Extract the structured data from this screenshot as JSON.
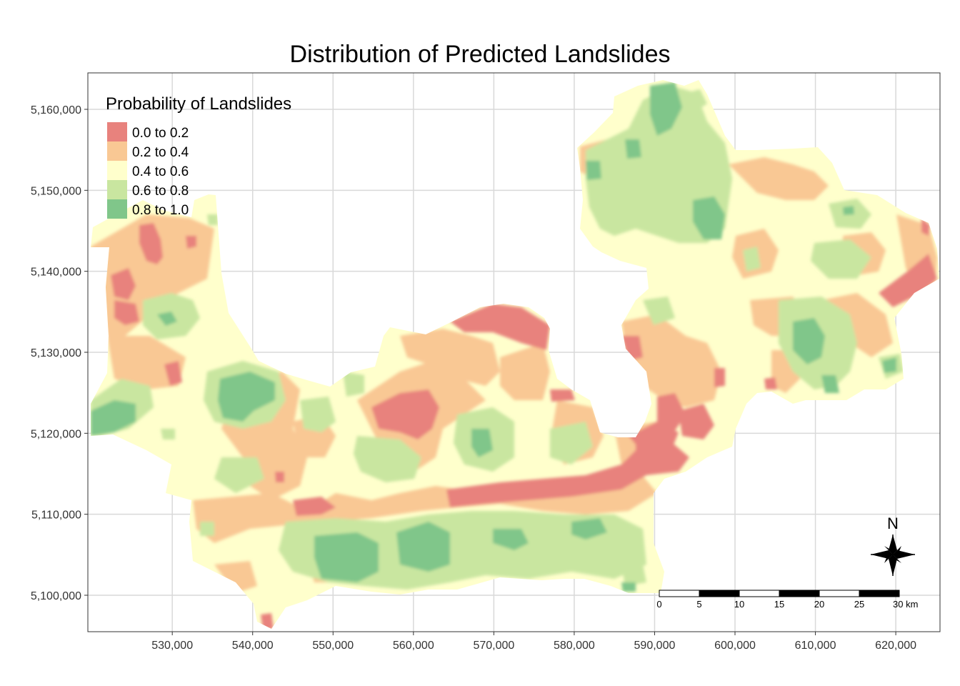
{
  "title": "Distribution of Predicted Landslides",
  "legend": {
    "title": "Probability of Landslides",
    "placement": "top-left",
    "items": [
      {
        "label": "0.0 to 0.2",
        "color": "#e8827d"
      },
      {
        "label": "0.2 to 0.4",
        "color": "#f9c894"
      },
      {
        "label": "0.4 to 0.6",
        "color": "#ffffcc"
      },
      {
        "label": "0.6 to 0.8",
        "color": "#c9e6a0"
      },
      {
        "label": "0.8 to 1.0",
        "color": "#80c68a"
      }
    ]
  },
  "x_axis": {
    "ticks": [
      530000,
      540000,
      550000,
      560000,
      570000,
      580000,
      590000,
      600000,
      610000,
      620000
    ],
    "tick_labels": [
      "530,000",
      "540,000",
      "550,000",
      "560,000",
      "570,000",
      "580,000",
      "590,000",
      "600,000",
      "610,000",
      "620,000"
    ],
    "range": [
      519500,
      625500
    ]
  },
  "y_axis": {
    "ticks": [
      5100000,
      5110000,
      5120000,
      5130000,
      5140000,
      5150000,
      5160000
    ],
    "tick_labels": [
      "5,100,000",
      "5,110,000",
      "5,120,000",
      "5,130,000",
      "5,140,000",
      "5,150,000",
      "5,160,000"
    ],
    "range": [
      5095500,
      5164500
    ]
  },
  "grid": true,
  "scale_bar": {
    "labels": [
      "0",
      "5",
      "10",
      "15",
      "20",
      "25",
      "30 km"
    ],
    "length_km": 30
  },
  "north_arrow": {
    "label": "N"
  }
}
